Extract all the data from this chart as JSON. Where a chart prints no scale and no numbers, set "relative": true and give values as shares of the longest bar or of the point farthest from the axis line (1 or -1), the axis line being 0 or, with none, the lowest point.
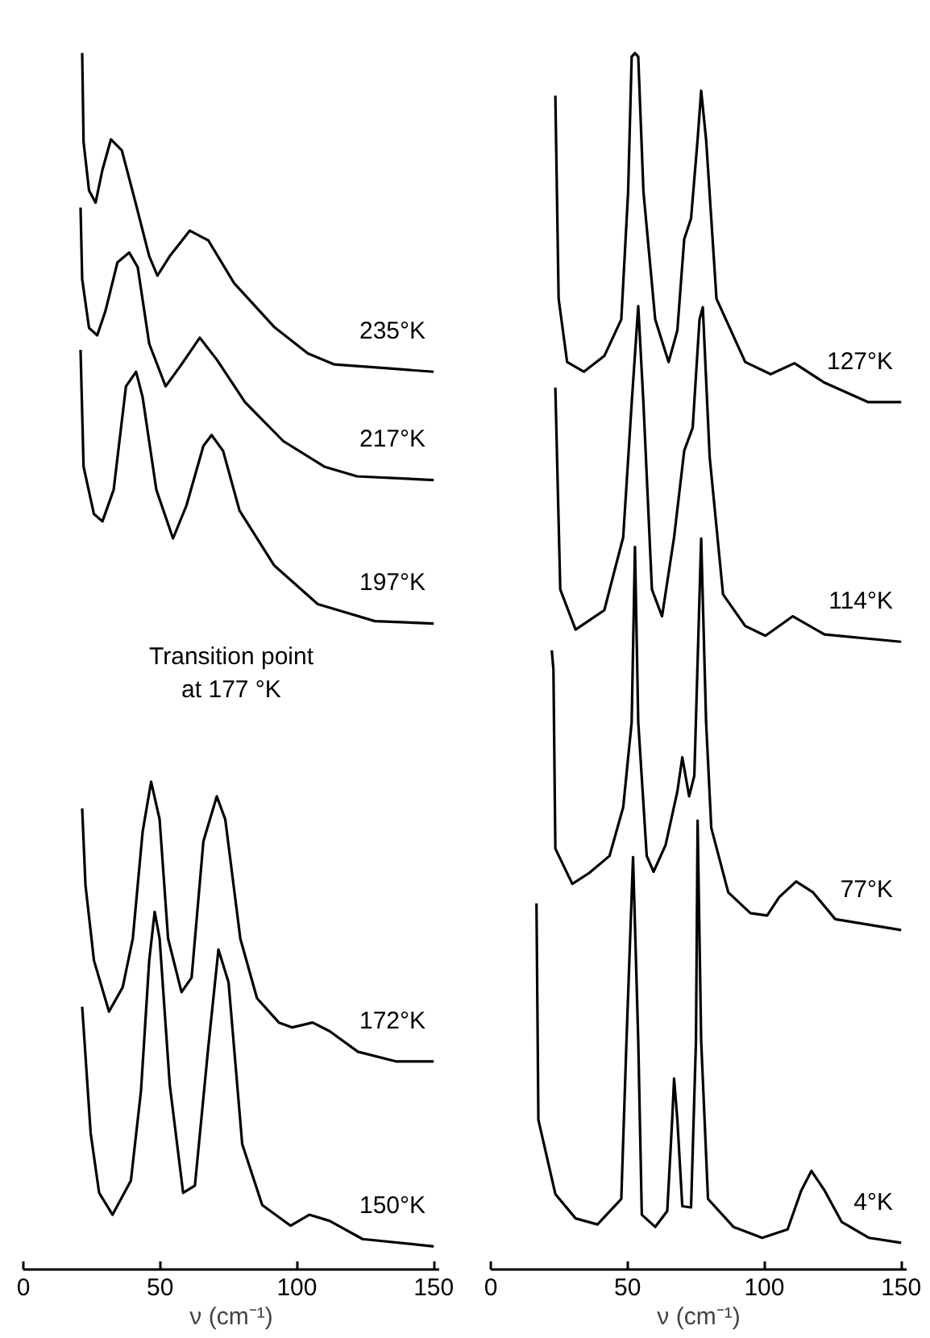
{
  "chart_data": [
    {
      "type": "line",
      "relative": true,
      "xlabel": "ν (cm⁻¹)",
      "xlim": [
        0,
        152
      ],
      "xticks": [
        0,
        50,
        100,
        150
      ],
      "tick_labels": "x",
      "grid": false,
      "legend": false,
      "marker": "none",
      "line_style": "solid",
      "annotations": [
        "Transition point\nat 177 °K"
      ],
      "series": [
        {
          "name": "235°K",
          "color": "#000000",
          "x": [
            21.5,
            22,
            24,
            26.4,
            28.9,
            32,
            36,
            41,
            46,
            49,
            53.5,
            60.8,
            67.6,
            77,
            91.6,
            104,
            113.7,
            132,
            150
          ],
          "values": [
            1.0,
            0.927,
            0.887,
            0.877,
            0.904,
            0.929,
            0.92,
            0.877,
            0.833,
            0.817,
            0.833,
            0.854,
            0.846,
            0.811,
            0.775,
            0.753,
            0.744,
            0.741,
            0.738
          ]
        },
        {
          "name": "217°K",
          "color": "#000000",
          "x": [
            20.9,
            21.5,
            24,
            27,
            30,
            34.4,
            38.7,
            41.8,
            46,
            52,
            57.8,
            64.5,
            70.7,
            81,
            95,
            110,
            122,
            150
          ],
          "values": [
            0.873,
            0.814,
            0.774,
            0.768,
            0.788,
            0.828,
            0.836,
            0.824,
            0.761,
            0.726,
            0.744,
            0.766,
            0.748,
            0.713,
            0.681,
            0.66,
            0.652,
            0.649
          ]
        },
        {
          "name": "197°K",
          "color": "#000000",
          "x": [
            20.9,
            22,
            25.8,
            28.9,
            33,
            37.5,
            41.2,
            43.6,
            48.6,
            54.7,
            59.6,
            65.8,
            68.8,
            73,
            79,
            91.6,
            107.6,
            128.5,
            150
          ],
          "values": [
            0.756,
            0.66,
            0.621,
            0.615,
            0.641,
            0.726,
            0.738,
            0.717,
            0.641,
            0.601,
            0.628,
            0.677,
            0.686,
            0.673,
            0.624,
            0.579,
            0.547,
            0.533,
            0.531
          ]
        },
        {
          "name": "172°K",
          "color": "#000000",
          "x": [
            21.5,
            22.7,
            25.8,
            31.3,
            36.3,
            40,
            43.6,
            46.7,
            49.8,
            52.9,
            57.8,
            61.5,
            65.8,
            70.7,
            73.8,
            79.3,
            85.4,
            93.4,
            98.3,
            105.7,
            111.9,
            122.3,
            136.4,
            150
          ],
          "values": [
            0.379,
            0.316,
            0.254,
            0.212,
            0.232,
            0.272,
            0.36,
            0.401,
            0.37,
            0.272,
            0.228,
            0.24,
            0.352,
            0.389,
            0.37,
            0.272,
            0.223,
            0.203,
            0.199,
            0.203,
            0.196,
            0.179,
            0.171,
            0.171
          ]
        },
        {
          "name": "150°K",
          "color": "#000000",
          "x": [
            21.5,
            24.6,
            27.7,
            32.6,
            39.3,
            43,
            46,
            48,
            49.8,
            53.5,
            58.4,
            62.7,
            67.6,
            71.3,
            75,
            80,
            87.3,
            97.7,
            104.5,
            111.9,
            124,
            150
          ],
          "values": [
            0.216,
            0.112,
            0.063,
            0.045,
            0.073,
            0.147,
            0.254,
            0.294,
            0.272,
            0.152,
            0.063,
            0.069,
            0.183,
            0.263,
            0.236,
            0.103,
            0.053,
            0.036,
            0.045,
            0.04,
            0.025,
            0.019
          ]
        }
      ]
    },
    {
      "type": "line",
      "relative": true,
      "xlabel": "ν (cm⁻¹)",
      "xlim": [
        0,
        152
      ],
      "xticks": [
        0,
        50,
        100,
        150
      ],
      "tick_labels": "x",
      "grid": false,
      "legend": false,
      "marker": "none",
      "line_style": "solid",
      "series": [
        {
          "name": "127°K",
          "color": "#000000",
          "x": [
            23.6,
            24.8,
            27.9,
            34,
            41.5,
            47.7,
            50.2,
            51.5,
            52.7,
            53.9,
            55.8,
            60.1,
            65,
            68.2,
            70.7,
            73.2,
            75.6,
            76.9,
            78.7,
            82.5,
            93,
            102.3,
            111,
            122,
            138,
            150
          ],
          "values": [
            0.965,
            0.798,
            0.746,
            0.738,
            0.751,
            0.781,
            0.886,
            0.997,
            1.0,
            0.997,
            0.886,
            0.781,
            0.746,
            0.772,
            0.847,
            0.864,
            0.929,
            0.969,
            0.929,
            0.798,
            0.746,
            0.736,
            0.745,
            0.729,
            0.713,
            0.713
          ]
        },
        {
          "name": "114°K",
          "color": "#000000",
          "x": [
            23.6,
            25.4,
            31,
            41.5,
            48.4,
            51.5,
            53.9,
            55.8,
            58.9,
            62.6,
            67,
            70.7,
            73.8,
            76.3,
            77.5,
            80,
            84.9,
            93,
            100.4,
            110.4,
            122,
            150
          ],
          "values": [
            0.725,
            0.559,
            0.526,
            0.542,
            0.602,
            0.712,
            0.792,
            0.712,
            0.559,
            0.537,
            0.602,
            0.673,
            0.692,
            0.781,
            0.791,
            0.668,
            0.555,
            0.529,
            0.521,
            0.537,
            0.522,
            0.516
          ]
        },
        {
          "name": "77°K",
          "color": "#000000",
          "x": [
            22.3,
            22.9,
            23.6,
            29.8,
            36,
            43.4,
            48.4,
            51.5,
            52.7,
            53.9,
            57,
            59.5,
            63.9,
            68.2,
            70,
            72.5,
            74.4,
            76.9,
            78.7,
            80.6,
            86.8,
            94.9,
            101,
            105.4,
            111.6,
            117.8,
            125.9,
            150
          ],
          "values": [
            0.509,
            0.493,
            0.346,
            0.317,
            0.326,
            0.34,
            0.38,
            0.45,
            0.594,
            0.45,
            0.34,
            0.327,
            0.349,
            0.393,
            0.421,
            0.389,
            0.406,
            0.601,
            0.45,
            0.363,
            0.31,
            0.293,
            0.291,
            0.306,
            0.319,
            0.31,
            0.288,
            0.279
          ]
        },
        {
          "name": "4°K",
          "color": "#000000",
          "x": [
            16.7,
            17.4,
            23.6,
            31,
            39,
            47.7,
            49.6,
            52,
            53.9,
            55.2,
            60.1,
            64.5,
            66.3,
            67,
            68.2,
            70,
            73.2,
            75,
            75.6,
            76.9,
            79.4,
            88.7,
            99.2,
            108.5,
            113.5,
            117.2,
            122,
            128.3,
            138.3,
            150
          ],
          "values": [
            0.301,
            0.123,
            0.062,
            0.042,
            0.037,
            0.058,
            0.188,
            0.339,
            0.188,
            0.045,
            0.035,
            0.048,
            0.123,
            0.157,
            0.123,
            0.052,
            0.051,
            0.188,
            0.369,
            0.188,
            0.058,
            0.035,
            0.026,
            0.033,
            0.065,
            0.081,
            0.065,
            0.039,
            0.026,
            0.022
          ]
        }
      ]
    }
  ]
}
